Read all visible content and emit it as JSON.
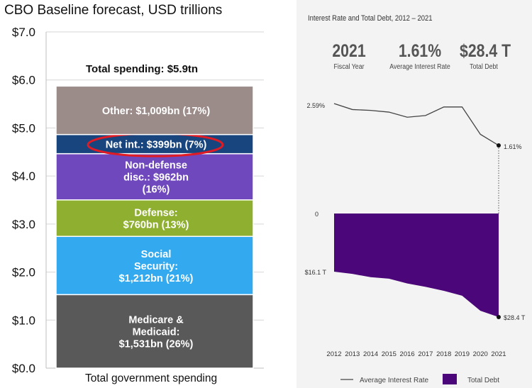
{
  "chart_data": [
    {
      "type": "bar",
      "stacked": true,
      "title": "CBO Baseline forecast, USD trillions",
      "xlabel": "Total government spending",
      "ylabel": "",
      "ylim": [
        0,
        7
      ],
      "y_ticks": [
        "$0.0",
        "$1.0",
        "$2.0",
        "$3.0",
        "$4.0",
        "$5.0",
        "$6.0",
        "$7.0"
      ],
      "total_label": "Total spending: $5.9tn",
      "grid": true,
      "segments": [
        {
          "name": "Medicare & Medicaid",
          "value": 1.531,
          "lines": [
            "Medicare &",
            "Medicaid:",
            "$1,531bn (26%)"
          ],
          "color": "#595959"
        },
        {
          "name": "Social Security",
          "value": 1.212,
          "lines": [
            "Social",
            "Security:",
            "$1,212bn (21%)"
          ],
          "color": "#33aaf0"
        },
        {
          "name": "Defense",
          "value": 0.76,
          "lines": [
            "Defense:",
            "$760bn (13%)"
          ],
          "color": "#8faf31"
        },
        {
          "name": "Non-defense disc.",
          "value": 0.962,
          "lines": [
            "Non-defense",
            "disc.: $962bn",
            "(16%)"
          ],
          "color": "#7048be"
        },
        {
          "name": "Net int.",
          "value": 0.399,
          "lines": [
            "Net int.: $399bn (7%)"
          ],
          "color": "#19457e",
          "highlighted": true
        },
        {
          "name": "Other",
          "value": 1.009,
          "lines": [
            "Other: $1,009bn (17%)"
          ],
          "color": "#9b8c8a"
        }
      ],
      "highlight_color": "#e01b24"
    },
    {
      "type": "line+area",
      "title": "Interest Rate and Total Debt, 2012 – 2021",
      "kpis": [
        {
          "value": "2021",
          "label": "Fiscal Year"
        },
        {
          "value": "1.61%",
          "label": "Average Interest Rate"
        },
        {
          "value": "$28.4 T",
          "label": "Total Debt"
        }
      ],
      "x": [
        "2012",
        "2013",
        "2014",
        "2015",
        "2016",
        "2017",
        "2018",
        "2019",
        "2020",
        "2021"
      ],
      "series": [
        {
          "name": "Average Interest Rate",
          "unit": "%",
          "values": [
            2.59,
            2.45,
            2.43,
            2.39,
            2.27,
            2.31,
            2.51,
            2.51,
            1.87,
            1.61
          ],
          "color": "#444444"
        },
        {
          "name": "Total Debt",
          "unit": "USD trillions",
          "values": [
            16.1,
            16.7,
            17.6,
            18.0,
            19.3,
            20.2,
            21.3,
            22.6,
            26.7,
            28.4
          ],
          "color": "#4b0779"
        }
      ],
      "labels": {
        "rate_start": "2.59%",
        "rate_end": "1.61%",
        "debt_zero": "0",
        "debt_start": "$16.1 T",
        "debt_end": "$28.4 T"
      },
      "legend": {
        "position": "bottom",
        "items": [
          "Average Interest Rate",
          "Total Debt"
        ]
      }
    }
  ]
}
